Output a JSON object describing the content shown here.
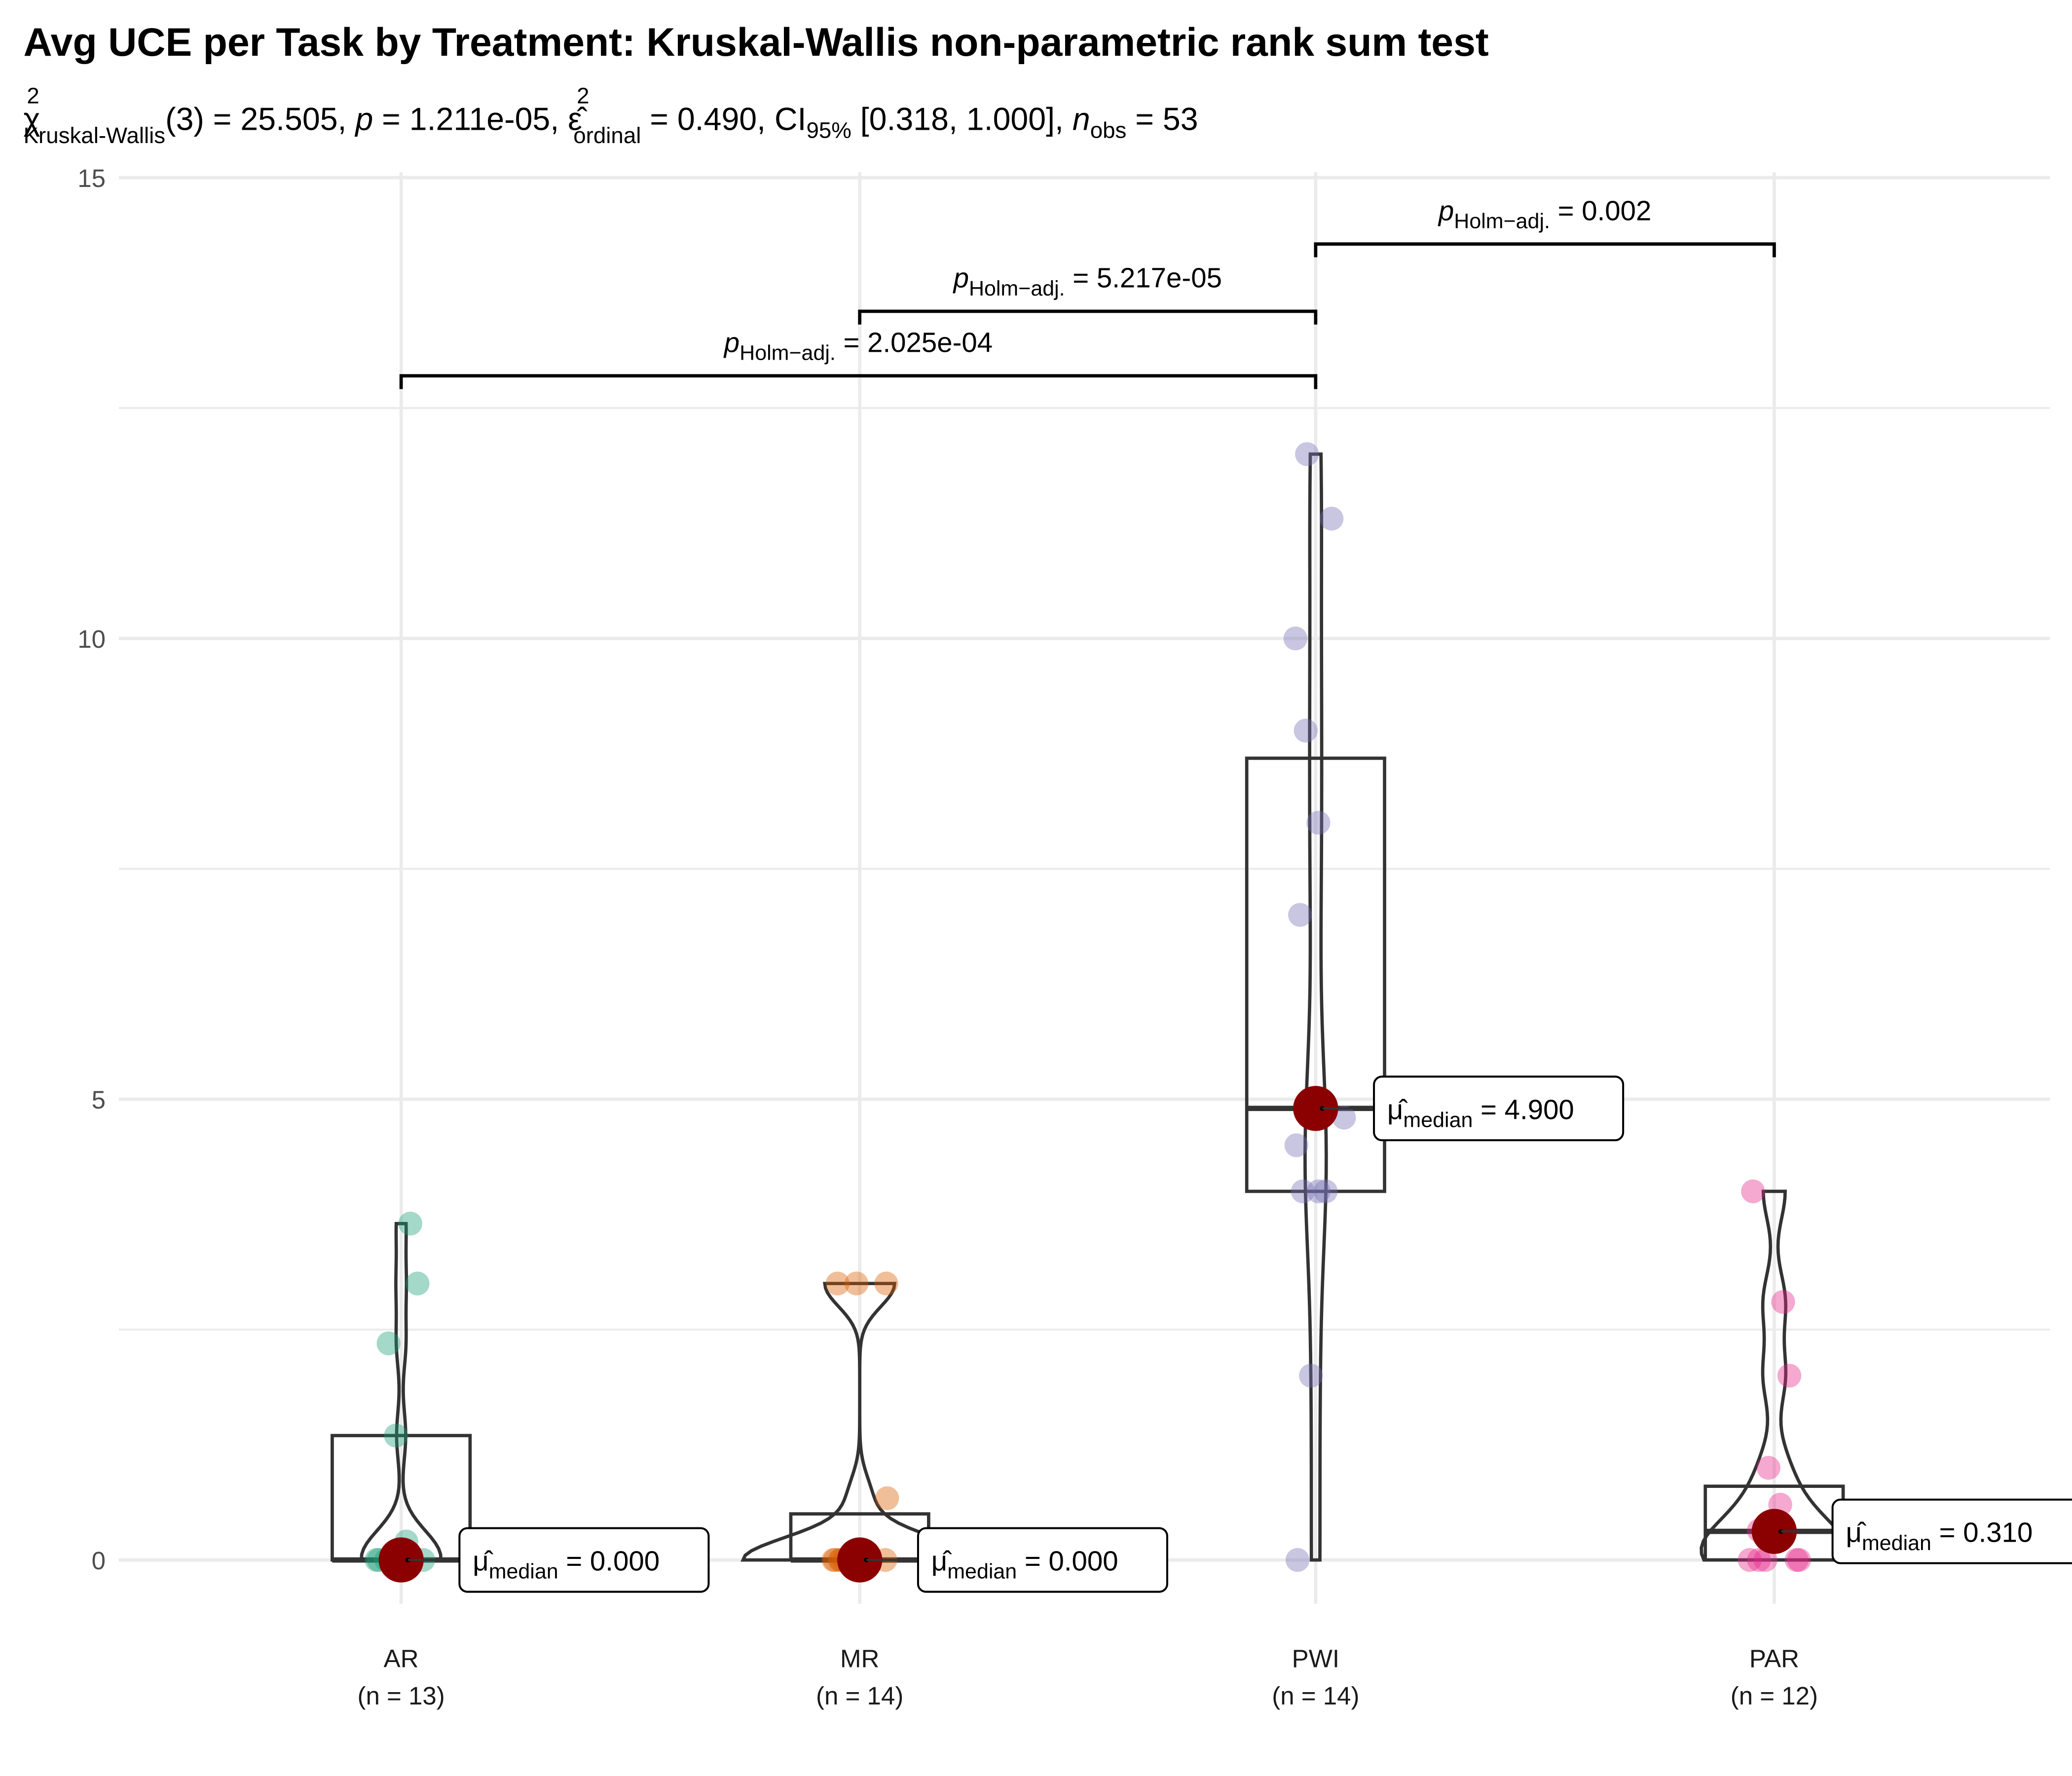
{
  "chart_data": {
    "type": "violin-box",
    "title": "Avg UCE per Task by Treatment: Kruskal-Wallis non-parametric rank sum test",
    "subtitle": {
      "chi": "χ",
      "chi_sup": "2",
      "chi_sub": "Kruskal-Wallis",
      "p1": "(3) = 25.505, ",
      "p_italic": "p",
      "p2": " = 1.211e-05, ",
      "eps": "ε̂",
      "eps_sup": "2",
      "eps_sub": "ordinal",
      "p3": " = 0.490, CI",
      "ci_sub": "95%",
      "p4": " [0.318, 1.000], ",
      "n_italic": "n",
      "n_sub": "obs",
      "p5": " = 53"
    },
    "xlabel": "",
    "ylabel": "",
    "ylim": [
      -0.7,
      15
    ],
    "yticks": [
      "0",
      "5",
      "10",
      "15"
    ],
    "ytick_values": [
      0,
      5,
      10,
      15
    ],
    "grid": true,
    "groups": [
      {
        "name": "AR",
        "n_label": "(n = 13)",
        "color": "#1b9e77",
        "points": [
          0,
          0,
          0,
          0,
          0,
          0,
          0,
          0,
          0.2,
          1.35,
          2.35,
          3.0,
          3.65
        ],
        "q1": 0,
        "median": 0,
        "q3": 1.35,
        "median_label": "= 0.000"
      },
      {
        "name": "MR",
        "n_label": "(n = 14)",
        "color": "#d95f02",
        "points": [
          0,
          0,
          0,
          0,
          0,
          0,
          0,
          0,
          0,
          0,
          0.67,
          3,
          3,
          3
        ],
        "q1": 0,
        "median": 0,
        "q3": 0.5,
        "median_label": "= 0.000"
      },
      {
        "name": "PWI",
        "n_label": "(n = 14)",
        "color": "#7570b3",
        "points": [
          0,
          2,
          4,
          4,
          4,
          4.5,
          4.8,
          5,
          7,
          8,
          9,
          10,
          11.3,
          12
        ],
        "q1": 4.0,
        "median": 4.9,
        "q3": 8.7,
        "median_label": "= 4.900"
      },
      {
        "name": "PAR",
        "n_label": "(n = 12)",
        "color": "#e7298a",
        "points": [
          0,
          0,
          0,
          0,
          0,
          0.3,
          0.32,
          0.6,
          1.0,
          2,
          2.8,
          4
        ],
        "q1": 0,
        "median": 0.31,
        "q3": 0.8,
        "median_label": "= 0.310"
      }
    ],
    "median_symbol": "μ̂",
    "median_sub": "median",
    "median_point_color": "#8b0000",
    "comparisons": [
      {
        "from": "AR",
        "to": "PWI",
        "y": 12.85,
        "p_label": "p",
        "p_sub": "Holm−adj.",
        "value": " = 2.025e-04"
      },
      {
        "from": "MR",
        "to": "PWI",
        "y": 13.55,
        "p_label": "p",
        "p_sub": "Holm−adj.",
        "value": " = 5.217e-05"
      },
      {
        "from": "PWI",
        "to": "PAR",
        "y": 14.28,
        "p_label": "p",
        "p_sub": "Holm−adj.",
        "value": " = 0.002"
      }
    ]
  }
}
